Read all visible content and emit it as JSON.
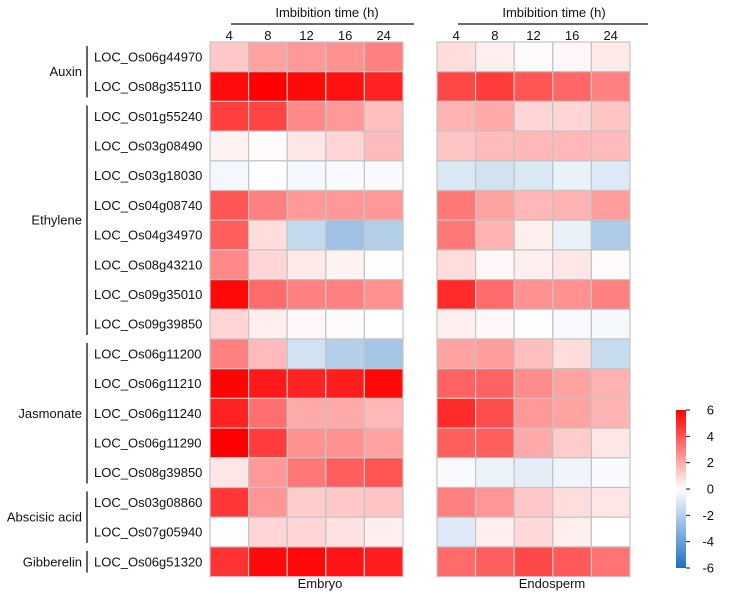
{
  "chart_data": {
    "type": "heatmap",
    "column_header": "Imbibition time (h)",
    "columns": [
      "4",
      "8",
      "12",
      "16",
      "24"
    ],
    "panels": [
      "Embryo",
      "Endosperm"
    ],
    "groups": [
      {
        "name": "Auxin",
        "rows": [
          "LOC_Os06g44970",
          "LOC_Os08g35110"
        ]
      },
      {
        "name": "Ethylene",
        "rows": [
          "LOC_Os01g55240",
          "LOC_Os03g08490",
          "LOC_Os03g18030",
          "LOC_Os04g08740",
          "LOC_Os04g34970",
          "LOC_Os08g43210",
          "LOC_Os09g35010",
          "LOC_Os09g39850"
        ]
      },
      {
        "name": "Jasmonate",
        "rows": [
          "LOC_Os06g11200",
          "LOC_Os06g11210",
          "LOC_Os06g11240",
          "LOC_Os06g11290",
          "LOC_Os08g39850"
        ]
      },
      {
        "name": "Abscisic acid",
        "rows": [
          "LOC_Os03g08860",
          "LOC_Os07g05940"
        ]
      },
      {
        "name": "Gibberelin",
        "rows": [
          "LOC_Os06g51320"
        ]
      }
    ],
    "rows": [
      "LOC_Os06g44970",
      "LOC_Os08g35110",
      "LOC_Os01g55240",
      "LOC_Os03g08490",
      "LOC_Os03g18030",
      "LOC_Os04g08740",
      "LOC_Os04g34970",
      "LOC_Os08g43210",
      "LOC_Os09g35010",
      "LOC_Os09g39850",
      "LOC_Os06g11200",
      "LOC_Os06g11210",
      "LOC_Os06g11240",
      "LOC_Os06g11290",
      "LOC_Os08g39850",
      "LOC_Os03g08860",
      "LOC_Os07g05940",
      "LOC_Os06g51320"
    ],
    "values": {
      "Embryo": [
        [
          1.3,
          2.2,
          2.4,
          2.6,
          3.0
        ],
        [
          5.7,
          6.0,
          5.8,
          5.6,
          5.2
        ],
        [
          4.5,
          4.4,
          2.8,
          2.4,
          1.5
        ],
        [
          0.3,
          0.1,
          0.6,
          1.0,
          1.6
        ],
        [
          -0.3,
          -0.1,
          -0.3,
          -0.2,
          -0.2
        ],
        [
          4.0,
          3.0,
          2.4,
          2.4,
          2.4
        ],
        [
          3.8,
          0.8,
          -1.6,
          -2.6,
          -2.0
        ],
        [
          2.8,
          1.0,
          0.5,
          0.3,
          -0.1
        ],
        [
          5.8,
          3.5,
          3.0,
          3.0,
          2.6
        ],
        [
          1.0,
          0.4,
          0.2,
          0.1,
          0.0
        ],
        [
          3.0,
          1.6,
          -1.2,
          -2.0,
          -2.4
        ],
        [
          5.9,
          5.4,
          5.2,
          5.3,
          5.8
        ],
        [
          5.2,
          3.4,
          2.0,
          2.0,
          1.7
        ],
        [
          6.0,
          4.6,
          2.6,
          2.6,
          2.2
        ],
        [
          0.6,
          2.4,
          3.2,
          3.8,
          4.0
        ],
        [
          4.7,
          2.5,
          1.2,
          1.3,
          1.4
        ],
        [
          -0.1,
          1.0,
          1.0,
          0.7,
          0.4
        ],
        [
          4.8,
          5.8,
          5.8,
          5.5,
          5.3
        ]
      ],
      "Endosperm": [
        [
          0.8,
          0.4,
          0.1,
          0.2,
          0.5
        ],
        [
          4.3,
          4.6,
          4.0,
          3.6,
          3.0
        ],
        [
          1.8,
          2.0,
          1.0,
          1.0,
          1.4
        ],
        [
          1.4,
          1.6,
          1.7,
          1.7,
          1.6
        ],
        [
          -1.0,
          -1.2,
          -1.0,
          -0.6,
          -0.9
        ],
        [
          3.2,
          2.2,
          1.7,
          1.8,
          2.3
        ],
        [
          3.2,
          1.8,
          0.4,
          -0.6,
          -2.2
        ],
        [
          0.8,
          0.2,
          0.4,
          0.6,
          0.1
        ],
        [
          5.0,
          3.5,
          2.6,
          2.6,
          3.0
        ],
        [
          0.4,
          0.2,
          -0.1,
          -0.2,
          -0.3
        ],
        [
          2.2,
          2.3,
          1.5,
          0.8,
          -1.5
        ],
        [
          3.7,
          3.7,
          2.7,
          2.2,
          1.8
        ],
        [
          5.0,
          4.2,
          2.4,
          2.2,
          1.8
        ],
        [
          3.8,
          3.8,
          2.0,
          1.2,
          0.6
        ],
        [
          -0.2,
          -0.5,
          -0.7,
          -0.4,
          -0.2
        ],
        [
          3.0,
          2.5,
          1.3,
          0.8,
          0.6
        ],
        [
          -0.9,
          0.4,
          0.9,
          0.4,
          0.0
        ],
        [
          3.5,
          3.8,
          4.3,
          3.9,
          3.3
        ]
      ]
    },
    "color_scale": {
      "min": -6,
      "max": 6,
      "ticks": [
        "6",
        "4",
        "2",
        "0",
        "-2",
        "-4",
        "-6"
      ],
      "low_color": "#1f6fc0",
      "mid_color": "#ffffff",
      "high_color": "#ff0000"
    },
    "cell_border_color": "#c4c4c4"
  }
}
